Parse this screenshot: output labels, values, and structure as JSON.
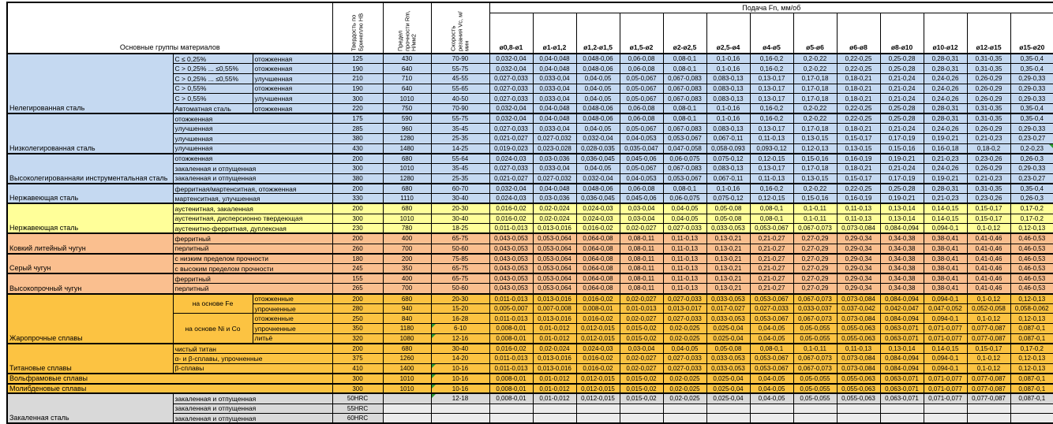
{
  "header": {
    "materials_title": "Основные группы материалов",
    "hardness_title": "Твердость по Бринеллю HB",
    "strength_title": "Предел прочности Rm, Н/мм2",
    "speed_title": "Скорость резания Vc, м/мин",
    "feed_title": "Подача Fn, мм/об",
    "diameters": [
      "ø0,8-ø1",
      "ø1-ø1,2",
      "ø1,2-ø1,5",
      "ø1,5-ø2",
      "ø2-ø2,5",
      "ø2,5-ø4",
      "ø4-ø5",
      "ø5-ø6",
      "ø6-ø8",
      "ø8-ø10",
      "ø10-ø12",
      "ø12-ø15",
      "ø15-ø20"
    ]
  },
  "colors": {
    "steel_blue": "#c5d9f1",
    "stainless_yellow": "#ffff99",
    "cast_iron_salmon": "#fabf8f",
    "superalloy_gold": "#fcc342",
    "hardened_gray": "#d9d9d9",
    "comment_marker_green": "#2e9b33"
  },
  "feed_patterns": {
    "A": [
      "0,032-0,04",
      "0,04-0,048",
      "0,048-0,06",
      "0,06-0,08",
      "0,08-0,1",
      "0,1-0,16",
      "0,16-0,2",
      "0,2-0,22",
      "0,22-0,25",
      "0,25-0,28",
      "0,28-0,31",
      "0,31-0,35",
      "0,35-0,4"
    ],
    "B": [
      "0,027-0,033",
      "0,033-0,04",
      "0,04-0,05",
      "0,05-0,067",
      "0,067-0,083",
      "0,083-0,13",
      "0,13-0,17",
      "0,17-0,18",
      "0,18-0,21",
      "0,21-0,24",
      "0,24-0,26",
      "0,26-0,29",
      "0,29-0,33"
    ],
    "C": [
      "0,021-0,027",
      "0,027-0,032",
      "0,032-0,04",
      "0,04-0,053",
      "0,053-0,067",
      "0,067-0,11",
      "0,11-0,13",
      "0,13-0,15",
      "0,15-0,17",
      "0,17-0,19",
      "0,19-0,21",
      "0,21-0,23",
      "0,23-0,27"
    ],
    "D": [
      "0,019-0,023",
      "0,023-0,028",
      "0,028-0,035",
      "0,035-0,047",
      "0,047-0,058",
      "0,058-0,093",
      "0,093-0,12",
      "0,12-0,13",
      "0,13-0,15",
      "0,15-0,16",
      "0,16-0,18",
      "0,18-0,2",
      "0,2-0,23"
    ],
    "E": [
      "0,024-0,03",
      "0,03-0,036",
      "0,036-0,045",
      "0,045-0,06",
      "0,06-0,075",
      "0,075-0,12",
      "0,12-0,15",
      "0,15-0,16",
      "0,16-0,19",
      "0,19-0,21",
      "0,21-0,23",
      "0,23-0,26",
      "0,26-0,3"
    ],
    "F": [
      "0,016-0,02",
      "0,02-0,024",
      "0,024-0,03",
      "0,03-0,04",
      "0,04-0,05",
      "0,05-0,08",
      "0,08-0,1",
      "0,1-0,11",
      "0,11-0,13",
      "0,13-0,14",
      "0,14-0,15",
      "0,15-0,17",
      "0,17-0,2"
    ],
    "G": [
      "0,011-0,013",
      "0,013-0,016",
      "0,016-0,02",
      "0,02-0,027",
      "0,027-0,033",
      "0,033-0,053",
      "0,053-0,067",
      "0,067-0,073",
      "0,073-0,084",
      "0,084-0,094",
      "0,094-0,1",
      "0,1-0,12",
      "0,12-0,13"
    ],
    "H": [
      "0,043-0,053",
      "0,053-0,064",
      "0,064-0,08",
      "0,08-0,11",
      "0,11-0,13",
      "0,13-0,21",
      "0,21-0,27",
      "0,27-0,29",
      "0,29-0,34",
      "0,34-0,38",
      "0,38-0,41",
      "0,41-0,46",
      "0,46-0,53"
    ],
    "I": [
      "0,005-0,007",
      "0,007-0,008",
      "0,008-0,01",
      "0,01-0,013",
      "0,013-0,017",
      "0,017-0,027",
      "0,027-0,033",
      "0,033-0,037",
      "0,037-0,042",
      "0,042-0,047",
      "0,047-0,052",
      "0,052-0,058",
      "0,058-0,062"
    ],
    "J": [
      "0,008-0,01",
      "0,01-0,012",
      "0,012-0,015",
      "0,015-0,02",
      "0,02-0,025",
      "0,025-0,04",
      "0,04-0,05",
      "0,05-0,055",
      "0,055-0,063",
      "0,063-0,071",
      "0,071-0,077",
      "0,077-0,087",
      "0,087-0,1"
    ]
  },
  "groups": [
    {
      "name": "Нелегированная сталь",
      "color": "blue",
      "layout": "split",
      "rows": [
        {
          "sub1": "C ≤ 0,25%",
          "sub2": "отожженная",
          "hb": "125",
          "rm": "430",
          "vc": "70-90",
          "feeds": "A"
        },
        {
          "sub1": "C > 0,25% ... ≤0,55%",
          "sub2": "отожженная",
          "hb": "190",
          "rm": "640",
          "vc": "55-75",
          "feeds": "A"
        },
        {
          "sub1": "C > 0,25% ... ≤0,55%",
          "sub2": "улучшенная",
          "hb": "210",
          "rm": "710",
          "vc": "45-55",
          "feeds": "B"
        },
        {
          "sub1": "C > 0,55%",
          "sub2": "отожженная",
          "hb": "190",
          "rm": "640",
          "vc": "55-65",
          "feeds": "B"
        },
        {
          "sub1": "C > 0,55%",
          "sub2": "улучшенная",
          "hb": "300",
          "rm": "1010",
          "vc": "40-50",
          "feeds": "B"
        },
        {
          "sub1": "Автоматная сталь",
          "sub2": "отожженная",
          "hb": "220",
          "rm": "750",
          "vc": "70-90",
          "feeds": "A"
        }
      ]
    },
    {
      "name": "Низколегированная сталь",
      "color": "blue",
      "layout": "merged",
      "rows": [
        {
          "state": "отожженная",
          "hb": "175",
          "rm": "590",
          "vc": "55-75",
          "feeds": "A"
        },
        {
          "state": "улучшенная",
          "hb": "285",
          "rm": "960",
          "vc": "35-45",
          "feeds": "B"
        },
        {
          "state": "улучшенная",
          "hb": "380",
          "rm": "1280",
          "vc": "25-35",
          "feeds": "C"
        },
        {
          "state": "улучшенная",
          "hb": "430",
          "rm": "1480",
          "vc": "14-25",
          "feeds": "D",
          "noteR": true
        }
      ]
    },
    {
      "name": "Высоколегированнаяи инструментальная сталь",
      "color": "blue",
      "layout": "merged",
      "rows": [
        {
          "state": "отожженная",
          "hb": "200",
          "rm": "680",
          "vc": "55-64",
          "feeds": "E"
        },
        {
          "state": "закаленная и отпущенная",
          "hb": "300",
          "rm": "1010",
          "vc": "35-45",
          "feeds": "B"
        },
        {
          "state": "закаленная и отпущенная",
          "hb": "380",
          "rm": "1280",
          "vc": "25-35",
          "feeds": "C"
        }
      ]
    },
    {
      "name": "Нержавеющая сталь",
      "color": "blue",
      "layout": "merged",
      "rows": [
        {
          "state": "ферритная/мартенситная, отожженная",
          "hb": "200",
          "rm": "680",
          "vc": "60-70",
          "feeds": "A"
        },
        {
          "state": "мартенситная, улучшенная",
          "hb": "330",
          "rm": "1110",
          "vc": "30-40",
          "feeds": "E"
        }
      ]
    },
    {
      "name": "Нержавеющая сталь",
      "color": "yellow",
      "layout": "merged",
      "rows": [
        {
          "state": "аустенитная, закаленная",
          "hb": "200",
          "rm": "680",
          "vc": "20-30",
          "feeds": "F"
        },
        {
          "state": "аустенитная, дисперсионно твердеющая",
          "hb": "300",
          "rm": "1010",
          "vc": "30-40",
          "feeds": "F"
        },
        {
          "state": "аустенитно-ферритная, дуплексная",
          "hb": "230",
          "rm": "780",
          "vc": "18-25",
          "feeds": "G"
        }
      ]
    },
    {
      "name": "Ковкий литейный чугун",
      "color": "salmon",
      "layout": "merged",
      "rows": [
        {
          "state": "ферритный",
          "hb": "200",
          "rm": "400",
          "vc": "65-75",
          "feeds": "H"
        },
        {
          "state": "перлитный",
          "hb": "260",
          "rm": "700",
          "vc": "50-60",
          "feeds": "H"
        }
      ]
    },
    {
      "name": "Серый чугун",
      "color": "salmon",
      "layout": "merged",
      "rows": [
        {
          "state": "с низким пределом прочности",
          "hb": "180",
          "rm": "200",
          "vc": "75-85",
          "feeds": "H"
        },
        {
          "state": "с высоким пределом прочности",
          "hb": "245",
          "rm": "350",
          "vc": "65-75",
          "feeds": "H"
        }
      ]
    },
    {
      "name": "Высокопрочный чугун",
      "color": "salmon",
      "layout": "merged",
      "rows": [
        {
          "state": "ферритный",
          "hb": "155",
          "rm": "400",
          "vc": "65-75",
          "feeds": "H"
        },
        {
          "state": "перлитный",
          "hb": "265",
          "rm": "700",
          "vc": "50-60",
          "feeds": "H"
        }
      ]
    },
    {
      "name": "Жаропрочные сплавы",
      "color": "gold",
      "layout": "base",
      "rows": [
        {
          "base": "на основе Fe",
          "baseSpan": 2,
          "sub2": "отожженные",
          "hb": "200",
          "rm": "680",
          "vc": "20-30",
          "feeds": "G"
        },
        {
          "sub2": "упрочненные",
          "hb": "280",
          "rm": "940",
          "vc": "15-20",
          "feeds": "I"
        },
        {
          "base": "на основе Ni и Co",
          "baseSpan": 3,
          "sub2": "отожженные",
          "hb": "250",
          "rm": "840",
          "vc": "16-28",
          "feeds": "G"
        },
        {
          "sub2": "упрочненные",
          "hb": "350",
          "rm": "1180",
          "vc": "6-10",
          "feeds": "J",
          "note": true
        },
        {
          "sub2": "литьё",
          "hb": "320",
          "rm": "1080",
          "vc": "12-16",
          "feeds": "J",
          "note": true
        }
      ]
    },
    {
      "name": "Титановые сплавы",
      "color": "gold",
      "layout": "merged",
      "rows": [
        {
          "state": "чистый титан",
          "hb": "200",
          "rm": "680",
          "vc": "30-40",
          "feeds": "F"
        },
        {
          "state": "α- и β-сплавы, упрочненные",
          "hb": "375",
          "rm": "1260",
          "vc": "14-20",
          "feeds": "G"
        },
        {
          "state": "β-сплавы",
          "hb": "410",
          "rm": "1400",
          "vc": "10-16",
          "feeds": "G",
          "note": true
        }
      ]
    },
    {
      "name": "Вольфрамовые сплавы",
      "color": "gold",
      "layout": "full",
      "rows": [
        {
          "hb": "300",
          "rm": "1010",
          "vc": "10-16",
          "feeds": "J",
          "note": true
        }
      ]
    },
    {
      "name": "Молибденовые сплавы",
      "color": "gold",
      "layout": "full",
      "rows": [
        {
          "hb": "300",
          "rm": "1010",
          "vc": "10-16",
          "feeds": "J",
          "note": true
        }
      ]
    },
    {
      "name": "Закаленная сталь",
      "color": "gray",
      "layout": "merged",
      "rows": [
        {
          "state": "закаленная и отпущенная",
          "hb": "50HRC",
          "rm": "",
          "vc": "12-18",
          "feeds": "J",
          "note": true
        },
        {
          "state": "закаленная и отпущенная",
          "hb": "55HRC",
          "rm": "",
          "vc": "",
          "dim": true
        },
        {
          "state": "закаленная и отпущенная",
          "hb": "60HRC",
          "rm": "",
          "vc": "",
          "dim": true
        }
      ]
    }
  ]
}
